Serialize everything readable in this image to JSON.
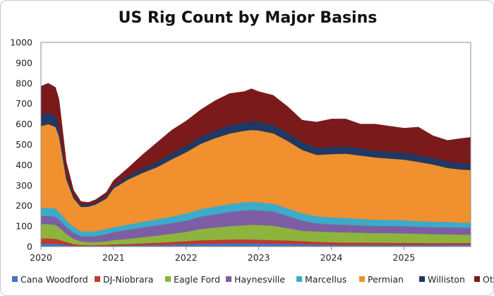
{
  "chart_data": {
    "type": "area",
    "stacked": true,
    "title": "US Rig Count by Major Basins",
    "xlabel": "",
    "ylabel": "",
    "ylim": [
      0,
      1000
    ],
    "yticks": [
      "0",
      "100",
      "200",
      "300",
      "400",
      "500",
      "600",
      "700",
      "800",
      "900",
      "1000"
    ],
    "xlim": [
      2020.0,
      2025.92
    ],
    "xticks": [
      "2020",
      "2021",
      "2022",
      "2023",
      "2024",
      "2025"
    ],
    "grid": false,
    "legend_position": "bottom",
    "x": [
      2020.0,
      2020.1,
      2020.2,
      2020.25,
      2020.35,
      2020.45,
      2020.55,
      2020.65,
      2020.75,
      2020.9,
      2021.0,
      2021.2,
      2021.4,
      2021.6,
      2021.8,
      2022.0,
      2022.2,
      2022.4,
      2022.6,
      2022.8,
      2022.9,
      2023.0,
      2023.2,
      2023.4,
      2023.6,
      2023.8,
      2024.0,
      2024.2,
      2024.4,
      2024.6,
      2024.8,
      2025.0,
      2025.2,
      2025.4,
      2025.6,
      2025.8,
      2025.92
    ],
    "series": [
      {
        "name": "Cana Woodford",
        "color": "#4472c4",
        "values": [
          15,
          15,
          14,
          12,
          8,
          5,
          3,
          3,
          3,
          4,
          5,
          6,
          7,
          8,
          10,
          12,
          14,
          15,
          16,
          16,
          16,
          16,
          15,
          14,
          12,
          10,
          8,
          8,
          8,
          8,
          8,
          8,
          8,
          8,
          9,
          9,
          9
        ]
      },
      {
        "name": "DJ-Niobrara",
        "color": "#c0392b",
        "values": [
          25,
          25,
          24,
          22,
          14,
          8,
          5,
          4,
          4,
          5,
          6,
          7,
          9,
          11,
          13,
          15,
          17,
          18,
          19,
          19,
          19,
          18,
          17,
          16,
          15,
          14,
          13,
          12,
          12,
          11,
          11,
          10,
          10,
          9,
          9,
          9,
          9
        ]
      },
      {
        "name": "Eagle Ford",
        "color": "#8db43c",
        "values": [
          70,
          70,
          68,
          60,
          40,
          25,
          18,
          15,
          15,
          17,
          20,
          25,
          30,
          35,
          40,
          45,
          55,
          60,
          65,
          70,
          72,
          72,
          70,
          60,
          50,
          50,
          50,
          50,
          48,
          47,
          47,
          47,
          45,
          44,
          42,
          40,
          40
        ]
      },
      {
        "name": "Haynesville",
        "color": "#7d5ea4",
        "values": [
          40,
          40,
          40,
          38,
          35,
          30,
          25,
          27,
          30,
          35,
          40,
          45,
          48,
          50,
          52,
          55,
          60,
          65,
          70,
          72,
          72,
          72,
          70,
          60,
          50,
          40,
          38,
          37,
          36,
          35,
          35,
          35,
          34,
          34,
          34,
          34,
          34
        ]
      },
      {
        "name": "Marcellus",
        "color": "#3aabc8",
        "values": [
          40,
          40,
          40,
          38,
          32,
          28,
          25,
          24,
          24,
          24,
          24,
          25,
          27,
          30,
          32,
          35,
          37,
          38,
          39,
          40,
          40,
          39,
          38,
          37,
          36,
          35,
          34,
          33,
          32,
          31,
          30,
          29,
          28,
          27,
          26,
          25,
          25
        ]
      },
      {
        "name": "Permian",
        "color": "#f0902e",
        "values": [
          400,
          410,
          400,
          370,
          200,
          140,
          118,
          122,
          130,
          150,
          190,
          220,
          240,
          255,
          280,
          300,
          320,
          335,
          345,
          350,
          352,
          352,
          345,
          330,
          310,
          300,
          310,
          315,
          310,
          305,
          300,
          297,
          290,
          280,
          265,
          260,
          258
        ]
      },
      {
        "name": "Williston",
        "color": "#1f3864",
        "values": [
          55,
          55,
          54,
          50,
          25,
          15,
          12,
          11,
          11,
          12,
          14,
          18,
          22,
          26,
          30,
          33,
          35,
          38,
          40,
          41,
          42,
          42,
          41,
          40,
          38,
          36,
          35,
          35,
          35,
          34,
          34,
          34,
          33,
          33,
          33,
          32,
          32
        ]
      },
      {
        "name": "Others",
        "color": "#7b1a1a",
        "values": [
          140,
          145,
          140,
          130,
          60,
          25,
          15,
          10,
          12,
          18,
          25,
          39,
          67,
          95,
          113,
          120,
          132,
          146,
          156,
          151,
          160,
          148,
          145,
          128,
          108,
          125,
          137,
          135,
          119,
          129,
          125,
          120,
          137,
          108,
          102,
          121,
          128
        ]
      }
    ]
  }
}
